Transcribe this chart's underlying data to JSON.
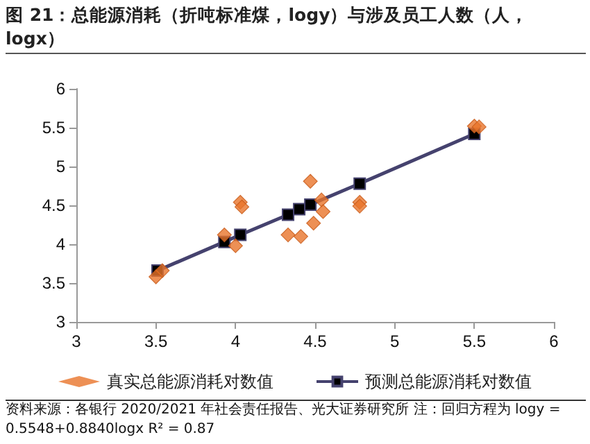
{
  "chart_data": {
    "type": "scatter",
    "title": "图 21：总能源消耗（折吨标准煤，logy）与涉及员工人数（人，logx）",
    "annotations": [
      "资料来源：各银行 2020/2021 年社会责任报告、光大证券研究所  注：回归方程为 logy = 0.5548+0.8840logx R² = 0.87"
    ],
    "series": [
      {
        "name": "真实总能源消耗对数值",
        "marker": "diamond",
        "color": "#e8742a",
        "x": [
          3.5,
          3.54,
          3.93,
          4.0,
          4.03,
          4.04,
          4.33,
          4.41,
          4.47,
          4.49,
          4.54,
          4.55,
          4.78,
          4.78,
          5.5,
          5.53
        ],
        "values": [
          3.58,
          3.66,
          4.12,
          3.98,
          4.54,
          4.48,
          4.12,
          4.1,
          4.81,
          4.27,
          4.57,
          4.42,
          4.54,
          4.49,
          5.52,
          5.51
        ]
      },
      {
        "name": "预测总能源消耗对数值",
        "type": "line",
        "marker": "square",
        "color": "#45426e",
        "x": [
          3.51,
          3.93,
          4.03,
          4.33,
          4.4,
          4.47,
          4.78,
          5.5
        ],
        "values": [
          3.66,
          4.03,
          4.12,
          4.38,
          4.45,
          4.51,
          4.78,
          5.42
        ]
      }
    ],
    "xlim": [
      3,
      6
    ],
    "xticks": [
      3,
      3.5,
      4,
      4.5,
      5,
      5.5,
      6
    ],
    "ylim": [
      3,
      6
    ],
    "yticks": [
      3,
      3.5,
      4,
      4.5,
      5,
      5.5,
      6
    ],
    "grid": false,
    "legend": "bottom"
  }
}
